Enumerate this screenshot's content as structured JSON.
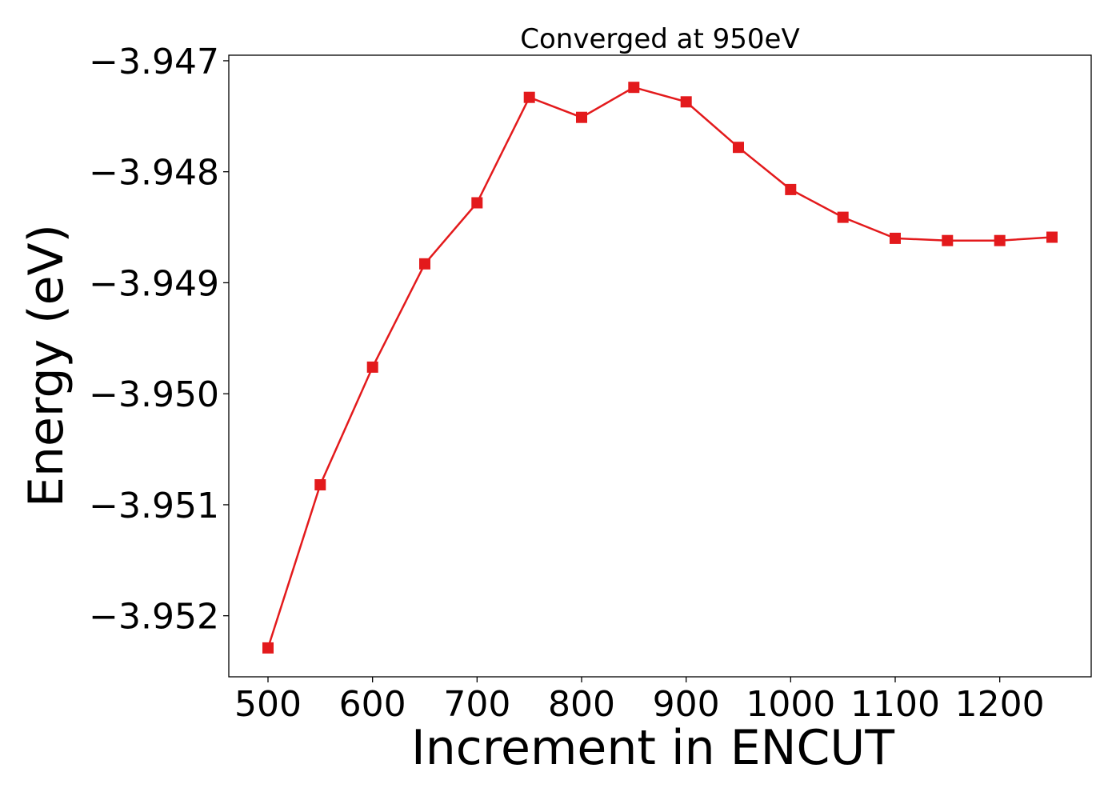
{
  "chart_data": {
    "type": "line",
    "title": "Converged at 950eV",
    "xlabel": "Increment in ENCUT",
    "ylabel": "Energy (eV)",
    "x": [
      500,
      550,
      600,
      650,
      700,
      750,
      800,
      850,
      900,
      950,
      1000,
      1050,
      1100,
      1150,
      1200,
      1250
    ],
    "series": [
      {
        "values": [
          -3.95229,
          -3.95082,
          -3.94976,
          -3.94883,
          -3.94828,
          -3.94733,
          -3.94751,
          -3.94724,
          -3.94737,
          -3.94778,
          -3.94816,
          -3.94841,
          -3.9486,
          -3.94862,
          -3.94862,
          -3.94859
        ],
        "color": "#e31a1c",
        "marker": "square"
      }
    ],
    "xticks": [
      500,
      600,
      700,
      800,
      900,
      1000,
      1100,
      1200
    ],
    "xtick_labels": [
      "500",
      "600",
      "700",
      "800",
      "900",
      "1000",
      "1100",
      "1200"
    ],
    "yticks": [
      -3.947,
      -3.948,
      -3.949,
      -3.95,
      -3.951,
      -3.952
    ],
    "ytick_labels": [
      "−3.947",
      "−3.948",
      "−3.949",
      "−3.950",
      "−3.951",
      "−3.952"
    ],
    "xlim": [
      462.5,
      1287.5
    ],
    "ylim": [
      -3.95255,
      -3.94695
    ],
    "grid": false,
    "legend": "none"
  }
}
